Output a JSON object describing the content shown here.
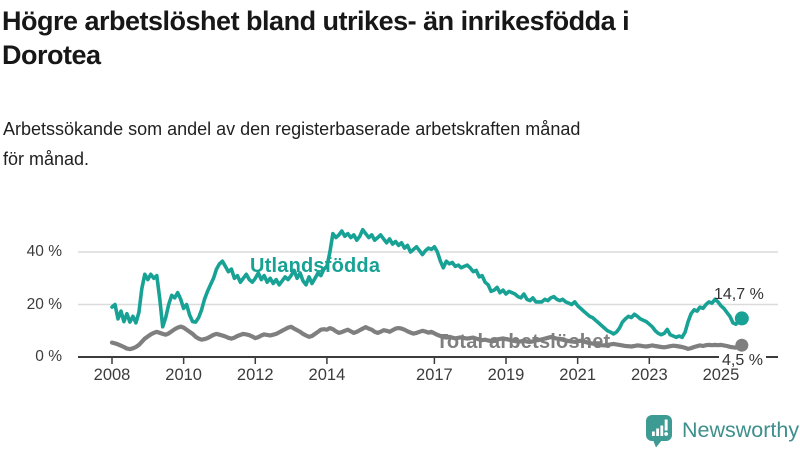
{
  "header": {
    "title": "Högre arbetslöshet bland utrikes- än inrikesfödda i\nDorotea",
    "subtitle": "Arbetssökande som andel av den registerbaserade arbetskraften månad\nför månad."
  },
  "footer": {
    "brand": "Newsworthy",
    "logo_icon": "bar-chart-speech-bubble-icon"
  },
  "colors": {
    "accent_teal": "#17A295",
    "series_gray": "#7F7F7F",
    "grid": "#DBDBDB",
    "axis": "#3C3C3C",
    "logo_teal": "#3E9B94"
  },
  "chart_data": {
    "type": "line",
    "unit": "%",
    "x_start": "2008-01",
    "x_end": "2025-08",
    "x_interval": "monthly",
    "x_ticks": [
      2008,
      2010,
      2012,
      2014,
      2017,
      2019,
      2021,
      2023,
      2025
    ],
    "y_ticks": [
      {
        "value": 0,
        "label": "0 %"
      },
      {
        "value": 20,
        "label": "20 %"
      },
      {
        "value": 40,
        "label": "40 %"
      }
    ],
    "ylim": [
      0,
      52
    ],
    "grid": "horizontal",
    "legend": "inline-labels",
    "series": [
      {
        "name": "Utlandsfödda",
        "color": "#17A295",
        "end_label": "14,7 %",
        "end_value": 14.7,
        "values": [
          19.0,
          20.0,
          14.5,
          17.5,
          13.5,
          16.5,
          13.3,
          15.5,
          13.0,
          17.0,
          26.0,
          31.5,
          29.5,
          31.5,
          30.0,
          31.0,
          22.0,
          11.5,
          15.0,
          20.0,
          23.5,
          22.5,
          24.5,
          22.0,
          18.5,
          20.0,
          16.0,
          13.5,
          13.3,
          15.0,
          18.0,
          22.0,
          25.0,
          27.5,
          30.0,
          33.5,
          35.5,
          36.5,
          34.5,
          32.5,
          33.5,
          30.0,
          31.0,
          28.5,
          30.0,
          31.5,
          29.5,
          28.5,
          30.0,
          32.0,
          29.5,
          31.0,
          28.5,
          30.0,
          28.0,
          29.5,
          27.5,
          29.0,
          30.5,
          29.5,
          31.0,
          33.0,
          30.0,
          32.0,
          29.0,
          27.5,
          30.5,
          28.0,
          30.0,
          32.0,
          31.0,
          33.5,
          34.5,
          40.0,
          47.0,
          45.5,
          46.5,
          48.0,
          46.0,
          47.0,
          45.5,
          46.5,
          44.5,
          46.0,
          48.5,
          47.0,
          45.5,
          46.5,
          44.5,
          45.5,
          46.5,
          45.0,
          43.5,
          45.0,
          43.0,
          44.0,
          42.5,
          43.5,
          41.5,
          42.5,
          40.0,
          41.0,
          42.0,
          40.5,
          39.0,
          40.5,
          41.5,
          41.0,
          42.0,
          40.0,
          36.5,
          34.0,
          36.5,
          35.5,
          36.0,
          34.5,
          35.0,
          34.0,
          34.5,
          35.0,
          34.0,
          32.5,
          33.0,
          30.5,
          31.0,
          28.5,
          27.5,
          25.0,
          25.5,
          26.5,
          24.5,
          25.5,
          24.0,
          25.0,
          24.5,
          24.0,
          23.0,
          22.5,
          24.0,
          22.0,
          21.5,
          22.5,
          21.0,
          21.0,
          21.0,
          22.0,
          21.5,
          22.5,
          23.0,
          22.0,
          21.5,
          22.0,
          21.0,
          20.5,
          20.0,
          21.0,
          19.5,
          18.5,
          17.5,
          16.5,
          15.5,
          15.0,
          14.0,
          13.0,
          12.0,
          11.0,
          10.0,
          9.5,
          8.8,
          9.5,
          11.0,
          13.3,
          14.5,
          15.5,
          15.0,
          16.3,
          15.5,
          14.5,
          14.0,
          13.5,
          12.5,
          11.5,
          10.0,
          9.0,
          8.5,
          9.0,
          10.5,
          8.5,
          8.0,
          7.5,
          8.0,
          7.5,
          9.5,
          13.5,
          16.5,
          18.0,
          17.5,
          19.0,
          18.5,
          20.0,
          21.0,
          20.5,
          22.0,
          21.0,
          19.5,
          18.5,
          17.0,
          15.5,
          13.0,
          12.5,
          13.5,
          14.7
        ]
      },
      {
        "name": "Total arbetslöshet",
        "color": "#7F7F7F",
        "end_label": "4,5 %",
        "end_value": 4.5,
        "values": [
          5.5,
          5.2,
          4.8,
          4.3,
          3.8,
          3.2,
          3.0,
          3.3,
          3.8,
          4.6,
          5.8,
          7.0,
          7.8,
          8.6,
          9.2,
          9.6,
          9.2,
          8.8,
          8.5,
          9.0,
          9.8,
          10.6,
          11.2,
          11.6,
          11.2,
          10.4,
          9.6,
          8.8,
          7.7,
          7.0,
          6.6,
          6.8,
          7.2,
          7.8,
          8.4,
          8.8,
          8.5,
          8.2,
          7.8,
          7.3,
          7.0,
          7.4,
          8.0,
          8.4,
          8.8,
          8.6,
          8.3,
          7.8,
          7.2,
          7.6,
          8.2,
          8.6,
          8.4,
          8.2,
          8.5,
          8.8,
          9.4,
          10.0,
          10.6,
          11.2,
          11.5,
          10.8,
          10.2,
          9.6,
          8.8,
          8.2,
          7.7,
          8.0,
          8.8,
          9.6,
          10.4,
          10.6,
          10.4,
          11.0,
          10.6,
          9.8,
          9.2,
          9.5,
          10.0,
          10.4,
          9.8,
          9.2,
          9.6,
          10.2,
          10.8,
          11.4,
          10.8,
          10.4,
          9.6,
          9.2,
          9.6,
          10.2,
          10.0,
          9.6,
          10.2,
          10.8,
          11.0,
          10.8,
          10.4,
          9.8,
          9.3,
          8.9,
          9.2,
          9.6,
          10.0,
          9.7,
          9.3,
          9.6,
          9.0,
          8.4,
          8.0,
          7.6,
          7.4,
          7.7,
          7.4,
          7.1,
          7.3,
          7.5,
          7.2,
          7.0,
          7.2,
          7.4,
          7.0,
          6.7,
          6.4,
          6.6,
          6.3,
          6.1,
          6.4,
          6.7,
          6.9,
          7.1,
          6.8,
          6.6,
          6.3,
          6.1,
          5.8,
          6.0,
          6.2,
          5.9,
          5.7,
          6.0,
          6.3,
          6.5,
          6.7,
          7.0,
          7.3,
          7.6,
          7.3,
          7.0,
          6.8,
          6.6,
          6.3,
          6.1,
          5.9,
          5.8,
          6.0,
          6.2,
          5.9,
          5.6,
          5.3,
          5.1,
          4.9,
          4.7,
          4.5,
          4.4,
          4.6,
          4.8,
          5.0,
          4.8,
          4.6,
          4.4,
          4.2,
          4.1,
          4.0,
          4.2,
          4.4,
          4.3,
          4.1,
          4.0,
          4.2,
          4.4,
          4.2,
          4.0,
          3.8,
          3.7,
          3.9,
          4.1,
          4.3,
          4.2,
          4.0,
          3.8,
          3.5,
          3.1,
          3.4,
          3.8,
          4.1,
          4.4,
          4.2,
          4.5,
          4.6,
          4.5,
          4.6,
          4.5,
          4.6,
          4.4,
          4.2,
          3.9,
          3.7,
          3.6,
          4.0,
          4.5
        ]
      }
    ]
  }
}
